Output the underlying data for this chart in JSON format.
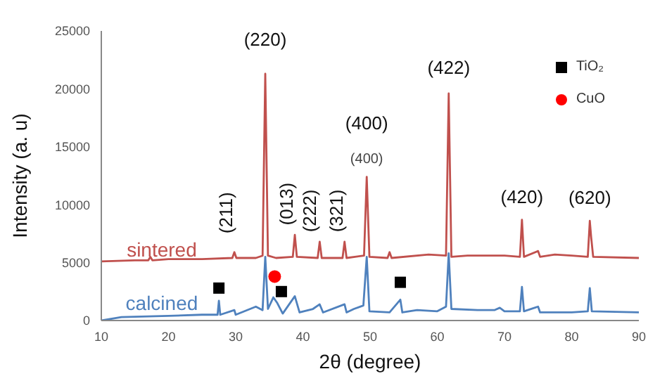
{
  "chart_data": {
    "type": "line",
    "xlabel": "2θ (degree)",
    "ylabel": "Intensity (a. u)",
    "xlim": [
      10,
      90
    ],
    "xticks": [
      10,
      20,
      30,
      40,
      50,
      60,
      70,
      80,
      90
    ],
    "ylim": [
      0,
      25000
    ],
    "yticks": [
      0,
      5000,
      10000,
      15000,
      20000,
      25000
    ],
    "grid": false,
    "legend": "top right",
    "marker": "none",
    "series": [
      {
        "name": "sintered",
        "color": "#c0504d",
        "x": [
          10,
          15,
          17,
          17.3,
          17.6,
          20,
          25,
          29.5,
          29.8,
          30.1,
          33,
          34,
          34.4,
          34.8,
          36,
          38.5,
          38.8,
          39.1,
          42.2,
          42.5,
          42.8,
          45.9,
          46.2,
          46.5,
          49.1,
          49.5,
          49.9,
          52.6,
          52.9,
          53.2,
          58.7,
          61.3,
          61.7,
          62.1,
          64.5,
          70,
          72.3,
          72.6,
          72.9,
          75,
          75.3,
          77.5,
          80,
          82.4,
          82.7,
          82.9,
          83.2,
          90
        ],
        "values": [
          5100,
          5200,
          5200,
          5500,
          5200,
          5300,
          5300,
          5400,
          5900,
          5400,
          5400,
          5600,
          21300,
          5600,
          5400,
          5500,
          7400,
          5500,
          5400,
          6800,
          5400,
          5400,
          6800,
          5400,
          5600,
          12400,
          5500,
          5400,
          5900,
          5400,
          5700,
          5600,
          19600,
          5500,
          5600,
          5600,
          5500,
          8700,
          5500,
          6000,
          5500,
          5700,
          5600,
          5500,
          8600,
          7200,
          5500,
          5400
        ]
      },
      {
        "name": "calcined",
        "color": "#4f81bd",
        "x": [
          10,
          13,
          20,
          25,
          27.3,
          27.5,
          27.7,
          29.8,
          30,
          33,
          34,
          34.4,
          34.8,
          35.6,
          36.2,
          37,
          38.8,
          39.5,
          41.5,
          42.5,
          43,
          46.2,
          46.5,
          47.6,
          49,
          49.5,
          49.9,
          52.9,
          54.5,
          54.8,
          57,
          60,
          61.3,
          61.7,
          62.1,
          66,
          68.5,
          69.3,
          70,
          72.3,
          72.6,
          72.9,
          75,
          75.3,
          80,
          82.4,
          82.7,
          83,
          90
        ],
        "values": [
          0,
          300,
          400,
          500,
          500,
          1700,
          500,
          900,
          500,
          1200,
          900,
          5500,
          1000,
          2000,
          1500,
          600,
          2100,
          700,
          1000,
          1400,
          700,
          1400,
          700,
          1000,
          1300,
          5500,
          800,
          700,
          1800,
          700,
          900,
          800,
          1200,
          5800,
          1000,
          900,
          900,
          1100,
          800,
          800,
          2900,
          800,
          1200,
          700,
          700,
          800,
          2800,
          800,
          700
        ]
      },
      {
        "name": "TiO₂",
        "type": "scatter",
        "marker": "square",
        "color": "#000000",
        "x": [
          27.5,
          36.8,
          54.5
        ],
        "values": [
          2800,
          2500,
          3300
        ]
      },
      {
        "name": "CuO",
        "type": "scatter",
        "marker": "circle",
        "color": "#ff0000",
        "x": [
          35.8
        ],
        "values": [
          3800
        ]
      }
    ],
    "annotations": [
      {
        "text": "(220)",
        "x": 34.4,
        "y": 21300
      },
      {
        "text": "(211)",
        "x": 29.8,
        "y": 5900
      },
      {
        "text": "(013)",
        "x": 38.8,
        "y": 7400
      },
      {
        "text": "(222)",
        "x": 42.5,
        "y": 6800
      },
      {
        "text": "(321)",
        "x": 46.2,
        "y": 6800
      },
      {
        "text": "(400)",
        "x": 49.5,
        "y": 12400
      },
      {
        "text": "(400)",
        "x": 49.5,
        "y": 12400
      },
      {
        "text": "(422)",
        "x": 61.7,
        "y": 19600
      },
      {
        "text": "(420)",
        "x": 72.6,
        "y": 8700
      },
      {
        "text": "(620)",
        "x": 82.7,
        "y": 8600
      }
    ]
  }
}
